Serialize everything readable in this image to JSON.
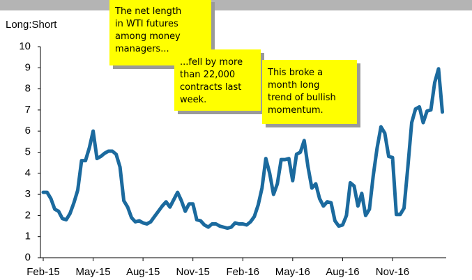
{
  "chart_data": {
    "type": "line",
    "y_axis_label": "Long:Short",
    "ylim": [
      0,
      10
    ],
    "yticks": [
      0,
      1,
      2,
      3,
      4,
      5,
      6,
      7,
      8,
      9,
      10
    ],
    "categories": [
      "Feb-15",
      null,
      null,
      null,
      null,
      null,
      null,
      null,
      null,
      null,
      null,
      null,
      null,
      "May-15",
      null,
      null,
      null,
      null,
      null,
      null,
      null,
      null,
      null,
      null,
      null,
      null,
      "Aug-15",
      null,
      null,
      null,
      null,
      null,
      null,
      null,
      null,
      null,
      null,
      null,
      null,
      "Nov-15",
      null,
      null,
      null,
      null,
      null,
      null,
      null,
      null,
      null,
      null,
      null,
      null,
      "Feb-16",
      null,
      null,
      null,
      null,
      null,
      null,
      null,
      null,
      null,
      null,
      null,
      null,
      "May-16",
      null,
      null,
      null,
      null,
      null,
      null,
      null,
      null,
      null,
      null,
      null,
      null,
      "Aug-16",
      null,
      null,
      null,
      null,
      null,
      null,
      null,
      null,
      null,
      null,
      null,
      null,
      "Nov-16",
      null,
      null,
      null,
      null,
      null,
      null,
      null,
      null,
      null,
      null,
      null,
      null,
      null
    ],
    "series": [
      {
        "name": "Long:Short",
        "color": "#1b6a9e",
        "values": [
          3.1,
          3.1,
          2.8,
          2.3,
          2.2,
          1.85,
          1.8,
          2.1,
          2.6,
          3.2,
          4.6,
          4.6,
          5.2,
          6.0,
          4.7,
          4.8,
          4.95,
          5.05,
          5.05,
          4.9,
          4.3,
          2.7,
          2.4,
          1.9,
          1.7,
          1.75,
          1.65,
          1.6,
          1.7,
          1.95,
          2.2,
          2.45,
          2.65,
          2.4,
          2.75,
          3.1,
          2.7,
          2.2,
          2.55,
          2.55,
          1.8,
          1.75,
          1.55,
          1.45,
          1.6,
          1.6,
          1.5,
          1.45,
          1.4,
          1.45,
          1.65,
          1.6,
          1.6,
          1.55,
          1.7,
          1.95,
          2.5,
          3.3,
          4.7,
          4.0,
          3.0,
          3.5,
          4.65,
          4.65,
          4.7,
          3.65,
          4.9,
          5.0,
          5.55,
          4.3,
          3.3,
          3.5,
          2.8,
          2.45,
          2.65,
          2.6,
          1.75,
          1.5,
          1.55,
          2.0,
          3.55,
          3.4,
          2.45,
          3.05,
          2.0,
          2.3,
          3.9,
          5.2,
          6.2,
          5.9,
          4.8,
          4.75,
          2.05,
          2.05,
          2.35,
          4.3,
          6.4,
          7.05,
          7.15,
          6.4,
          6.95,
          7.0,
          8.3,
          8.95,
          6.9
        ]
      }
    ],
    "annotations": [
      {
        "lines": [
          "The net length",
          "in WTI futures",
          "among money",
          "managers..."
        ]
      },
      {
        "lines": [
          "...fell by more",
          "than 22,000",
          "contracts last",
          "week."
        ]
      },
      {
        "lines": [
          "This broke a",
          "month long",
          "trend of bullish",
          "momentum."
        ]
      }
    ]
  }
}
